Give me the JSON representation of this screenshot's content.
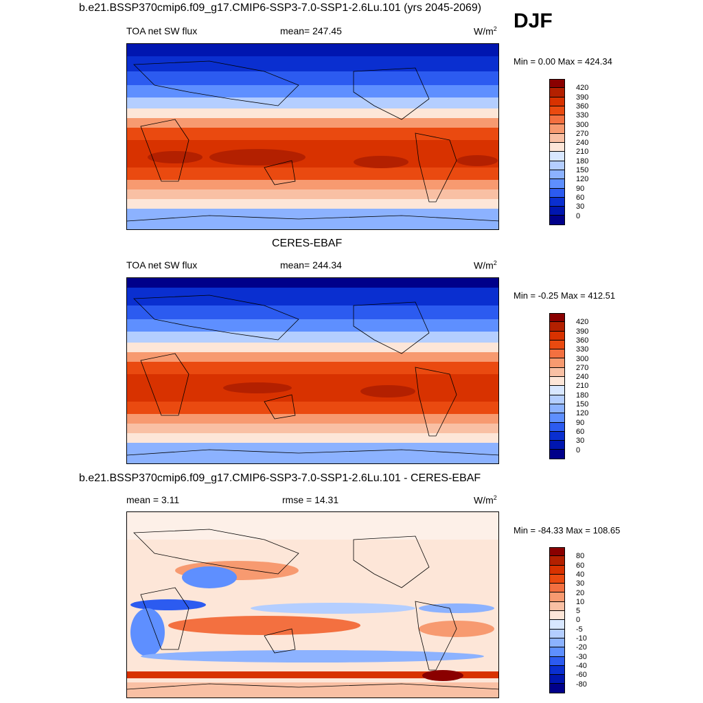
{
  "season": "DJF",
  "panels": [
    {
      "title": "b.e21.BSSP370cmip6.f09_g17.CMIP6-SSP3-7.0-SSP1-2.6Lu.101 (yrs 2045-2069)",
      "left_label": "TOA net SW flux",
      "center_label": "mean= 247.45",
      "units_base": "W/m",
      "units_exp": "2",
      "minmax": "Min =   0.00 Max = 424.34",
      "colorbar": {
        "labels": [
          "420",
          "390",
          "360",
          "330",
          "300",
          "270",
          "240",
          "210",
          "180",
          "150",
          "120",
          "90",
          "60",
          "30",
          "0"
        ],
        "colors": [
          "#8a0000",
          "#b32000",
          "#d83200",
          "#ea4a10",
          "#f37040",
          "#f79a70",
          "#f9c0a4",
          "#fde6d8",
          "#d8e7ff",
          "#b4ceff",
          "#8cb2ff",
          "#5e8fff",
          "#2c5bf0",
          "#0a2fd0",
          "#0016b0",
          "#00008a"
        ]
      }
    },
    {
      "title": "CERES-EBAF",
      "left_label": "TOA net SW flux",
      "center_label": "mean= 244.34",
      "units_base": "W/m",
      "units_exp": "2",
      "minmax": "Min =  -0.25 Max = 412.51",
      "colorbar": {
        "labels": [
          "420",
          "390",
          "360",
          "330",
          "300",
          "270",
          "240",
          "210",
          "180",
          "150",
          "120",
          "90",
          "60",
          "30",
          "0"
        ],
        "colors": [
          "#8a0000",
          "#b32000",
          "#d83200",
          "#ea4a10",
          "#f37040",
          "#f79a70",
          "#f9c0a4",
          "#fde6d8",
          "#d8e7ff",
          "#b4ceff",
          "#8cb2ff",
          "#5e8fff",
          "#2c5bf0",
          "#0a2fd0",
          "#0016b0",
          "#00008a"
        ]
      }
    },
    {
      "title": "b.e21.BSSP370cmip6.f09_g17.CMIP6-SSP3-7.0-SSP1-2.6Lu.101 - CERES-EBAF",
      "left_label": "mean =   3.11",
      "center_label": "rmse =  14.31",
      "units_base": "W/m",
      "units_exp": "2",
      "minmax": "Min = -84.33 Max = 108.65",
      "colorbar": {
        "labels": [
          "80",
          "60",
          "40",
          "30",
          "20",
          "10",
          "5",
          "0",
          "-5",
          "-10",
          "-20",
          "-30",
          "-40",
          "-60",
          "-80"
        ],
        "colors": [
          "#8a0000",
          "#b32000",
          "#d83200",
          "#ea4a10",
          "#f37040",
          "#f79a70",
          "#f9c0a4",
          "#fde6d8",
          "#d8e7ff",
          "#b4ceff",
          "#8cb2ff",
          "#5e8fff",
          "#2c5bf0",
          "#0a2fd0",
          "#0016b0",
          "#00008a"
        ]
      }
    }
  ]
}
